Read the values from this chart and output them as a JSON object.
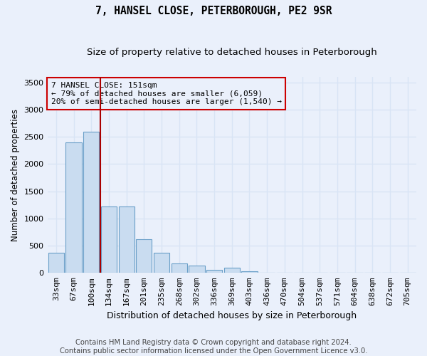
{
  "title": "7, HANSEL CLOSE, PETERBOROUGH, PE2 9SR",
  "subtitle": "Size of property relative to detached houses in Peterborough",
  "xlabel": "Distribution of detached houses by size in Peterborough",
  "ylabel": "Number of detached properties",
  "categories": [
    "33sqm",
    "67sqm",
    "100sqm",
    "134sqm",
    "167sqm",
    "201sqm",
    "235sqm",
    "268sqm",
    "302sqm",
    "336sqm",
    "369sqm",
    "403sqm",
    "436sqm",
    "470sqm",
    "504sqm",
    "537sqm",
    "571sqm",
    "604sqm",
    "638sqm",
    "672sqm",
    "705sqm"
  ],
  "values": [
    370,
    2400,
    2600,
    1220,
    1220,
    620,
    370,
    180,
    130,
    60,
    100,
    30,
    0,
    0,
    0,
    0,
    0,
    0,
    0,
    0,
    0
  ],
  "bar_color": "#c9dcf0",
  "bar_edge_color": "#6a9fc8",
  "background_color": "#eaf0fb",
  "grid_color": "#d8e4f5",
  "annotation_text": "7 HANSEL CLOSE: 151sqm\n← 79% of detached houses are smaller (6,059)\n20% of semi-detached houses are larger (1,540) →",
  "vline_x_index": 2.5,
  "vline_color": "#aa0000",
  "annotation_box_edge": "#cc0000",
  "ylim": [
    0,
    3600
  ],
  "yticks": [
    0,
    500,
    1000,
    1500,
    2000,
    2500,
    3000,
    3500
  ],
  "footnote": "Contains HM Land Registry data © Crown copyright and database right 2024.\nContains public sector information licensed under the Open Government Licence v3.0.",
  "title_fontsize": 10.5,
  "subtitle_fontsize": 9.5,
  "tick_fontsize": 8,
  "xlabel_fontsize": 9,
  "ylabel_fontsize": 8.5,
  "footnote_fontsize": 7.2
}
